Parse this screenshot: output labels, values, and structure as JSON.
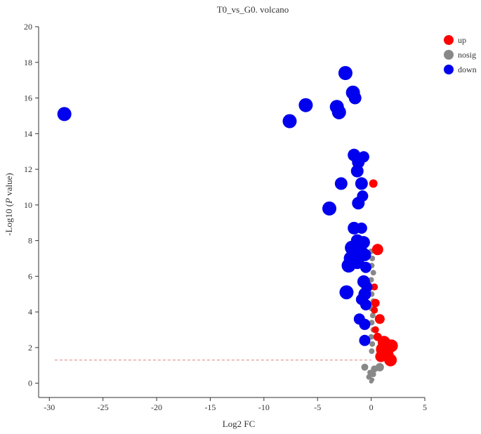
{
  "chart_data": {
    "type": "scatter",
    "title": "T0_vs_G0. volcano",
    "xlabel": "Log2 FC",
    "ylabel_prefix": "-Log10 (",
    "ylabel_italic": "P",
    "ylabel_suffix": " value)",
    "xlim": [
      -31,
      5
    ],
    "ylim": [
      -0.8,
      20
    ],
    "xticks": [
      -30,
      -25,
      -20,
      -15,
      -10,
      -5,
      0,
      5
    ],
    "yticks": [
      0,
      2,
      4,
      6,
      8,
      10,
      12,
      14,
      16,
      18,
      20
    ],
    "threshold_y": 1.3,
    "threshold_color": "#e08080",
    "legend_position": "top-right",
    "series": [
      {
        "name": "up",
        "color": "#ff0000",
        "points": [
          {
            "x": 0.2,
            "y": 11.2,
            "s": 6
          },
          {
            "x": 0.6,
            "y": 7.5,
            "s": 8
          },
          {
            "x": 0.3,
            "y": 5.4,
            "s": 5
          },
          {
            "x": 0.4,
            "y": 4.5,
            "s": 6
          },
          {
            "x": 0.3,
            "y": 4.1,
            "s": 5
          },
          {
            "x": 0.8,
            "y": 3.6,
            "s": 7
          },
          {
            "x": 0.4,
            "y": 3.0,
            "s": 5
          },
          {
            "x": 0.6,
            "y": 2.6,
            "s": 6
          },
          {
            "x": 1.2,
            "y": 2.3,
            "s": 9
          },
          {
            "x": 1.9,
            "y": 2.1,
            "s": 9
          },
          {
            "x": 1.1,
            "y": 1.9,
            "s": 10
          },
          {
            "x": 1.5,
            "y": 1.6,
            "s": 9
          },
          {
            "x": 0.9,
            "y": 1.5,
            "s": 8
          },
          {
            "x": 1.8,
            "y": 1.3,
            "s": 9
          }
        ]
      },
      {
        "name": "nosig",
        "color": "#888888",
        "points": [
          {
            "x": 0.0,
            "y": 7.4,
            "s": 4
          },
          {
            "x": 0.1,
            "y": 7.0,
            "s": 4
          },
          {
            "x": 0.05,
            "y": 6.6,
            "s": 4
          },
          {
            "x": 0.2,
            "y": 6.2,
            "s": 4
          },
          {
            "x": 0.0,
            "y": 5.8,
            "s": 4
          },
          {
            "x": 0.15,
            "y": 5.4,
            "s": 4
          },
          {
            "x": 0.05,
            "y": 5.0,
            "s": 4
          },
          {
            "x": 0.2,
            "y": 4.6,
            "s": 4
          },
          {
            "x": 0.0,
            "y": 4.2,
            "s": 4
          },
          {
            "x": 0.15,
            "y": 3.8,
            "s": 4
          },
          {
            "x": 0.05,
            "y": 3.4,
            "s": 4
          },
          {
            "x": 0.2,
            "y": 3.0,
            "s": 4
          },
          {
            "x": 0.0,
            "y": 2.6,
            "s": 4
          },
          {
            "x": 0.1,
            "y": 2.2,
            "s": 4
          },
          {
            "x": 0.05,
            "y": 1.8,
            "s": 4
          },
          {
            "x": -0.6,
            "y": 0.9,
            "s": 5
          },
          {
            "x": 0.8,
            "y": 0.9,
            "s": 6
          },
          {
            "x": 0.3,
            "y": 0.8,
            "s": 5
          },
          {
            "x": -0.1,
            "y": 0.6,
            "s": 4
          },
          {
            "x": 0.2,
            "y": 0.5,
            "s": 4
          },
          {
            "x": -0.2,
            "y": 0.35,
            "s": 4
          },
          {
            "x": 0.1,
            "y": 0.2,
            "s": 3
          },
          {
            "x": 0.0,
            "y": 0.1,
            "s": 3
          }
        ]
      },
      {
        "name": "down",
        "color": "#0000ee",
        "points": [
          {
            "x": -28.6,
            "y": 15.1,
            "s": 10
          },
          {
            "x": -7.6,
            "y": 14.7,
            "s": 10
          },
          {
            "x": -6.1,
            "y": 15.6,
            "s": 10
          },
          {
            "x": -3.2,
            "y": 15.5,
            "s": 10
          },
          {
            "x": -3.0,
            "y": 15.2,
            "s": 10
          },
          {
            "x": -2.4,
            "y": 17.4,
            "s": 10
          },
          {
            "x": -1.7,
            "y": 16.3,
            "s": 10
          },
          {
            "x": -1.5,
            "y": 16.0,
            "s": 9
          },
          {
            "x": -1.6,
            "y": 12.8,
            "s": 9
          },
          {
            "x": -1.2,
            "y": 12.4,
            "s": 9
          },
          {
            "x": -0.7,
            "y": 12.7,
            "s": 8
          },
          {
            "x": -1.3,
            "y": 11.9,
            "s": 9
          },
          {
            "x": -0.9,
            "y": 11.2,
            "s": 9
          },
          {
            "x": -2.8,
            "y": 11.2,
            "s": 9
          },
          {
            "x": -0.8,
            "y": 10.5,
            "s": 8
          },
          {
            "x": -1.2,
            "y": 10.1,
            "s": 9
          },
          {
            "x": -3.9,
            "y": 9.8,
            "s": 10
          },
          {
            "x": -1.6,
            "y": 8.7,
            "s": 9
          },
          {
            "x": -0.9,
            "y": 8.7,
            "s": 8
          },
          {
            "x": -1.3,
            "y": 8.0,
            "s": 9
          },
          {
            "x": -0.7,
            "y": 7.9,
            "s": 9
          },
          {
            "x": -1.8,
            "y": 7.6,
            "s": 10
          },
          {
            "x": -1.0,
            "y": 7.4,
            "s": 10
          },
          {
            "x": -0.6,
            "y": 7.2,
            "s": 9
          },
          {
            "x": -1.9,
            "y": 7.0,
            "s": 10
          },
          {
            "x": -1.3,
            "y": 6.8,
            "s": 10
          },
          {
            "x": -2.1,
            "y": 6.6,
            "s": 10
          },
          {
            "x": -0.5,
            "y": 6.5,
            "s": 8
          },
          {
            "x": -0.7,
            "y": 5.7,
            "s": 9
          },
          {
            "x": -0.4,
            "y": 5.4,
            "s": 8
          },
          {
            "x": -2.3,
            "y": 5.1,
            "s": 10
          },
          {
            "x": -0.6,
            "y": 5.0,
            "s": 9
          },
          {
            "x": -0.9,
            "y": 4.7,
            "s": 8
          },
          {
            "x": -0.5,
            "y": 4.4,
            "s": 8
          },
          {
            "x": -1.1,
            "y": 3.6,
            "s": 8
          },
          {
            "x": -0.6,
            "y": 3.3,
            "s": 8
          },
          {
            "x": -0.6,
            "y": 2.4,
            "s": 8
          }
        ]
      }
    ]
  }
}
